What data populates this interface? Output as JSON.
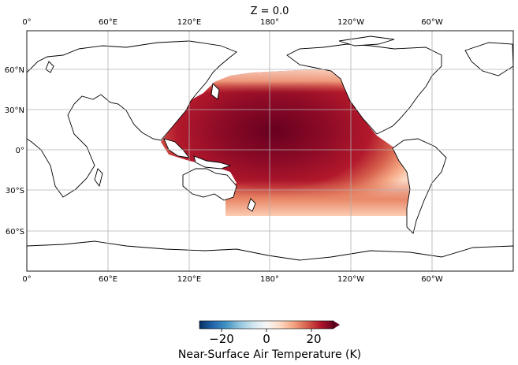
{
  "title": "Z = 0.0",
  "map": {
    "projection": "PlateCarree",
    "central_longitude": 180,
    "extent": {
      "lon": [
        0,
        360
      ],
      "lat": [
        -90,
        90
      ]
    },
    "gridlines": true,
    "top_lon_labels": [
      "0°",
      "60°E",
      "120°E",
      "180°",
      "120°W",
      "60°W"
    ],
    "bottom_lon_labels": [
      "0°",
      "60°E",
      "120°E",
      "180°",
      "120°W",
      "60°W"
    ],
    "lat_labels": [
      "60°N",
      "30°N",
      "0°",
      "30°S",
      "60°S"
    ],
    "data_region": "Pacific Ocean, ~48°S to ~60°N, ~110°E to ~70°W",
    "colormap": "RdBu_r",
    "land_mask_style": "coastlines black lines on white"
  },
  "colorbar": {
    "ticks": [
      "−20",
      "0",
      "20"
    ],
    "label": "Near-Surface Air Temperature (K)",
    "range": [
      -30,
      30
    ],
    "extend": "max"
  },
  "colors": {
    "dark_red": "#67001f",
    "red": "#b2182b",
    "mid_red": "#d6604d",
    "light_red": "#f4a582",
    "pale": "#fddbc7",
    "white": "#f7f7f7",
    "pale_blue": "#d1e5f0",
    "light_blue": "#92c5de",
    "blue": "#4393c3",
    "mid_blue": "#2166ac",
    "dark_blue": "#053061"
  }
}
